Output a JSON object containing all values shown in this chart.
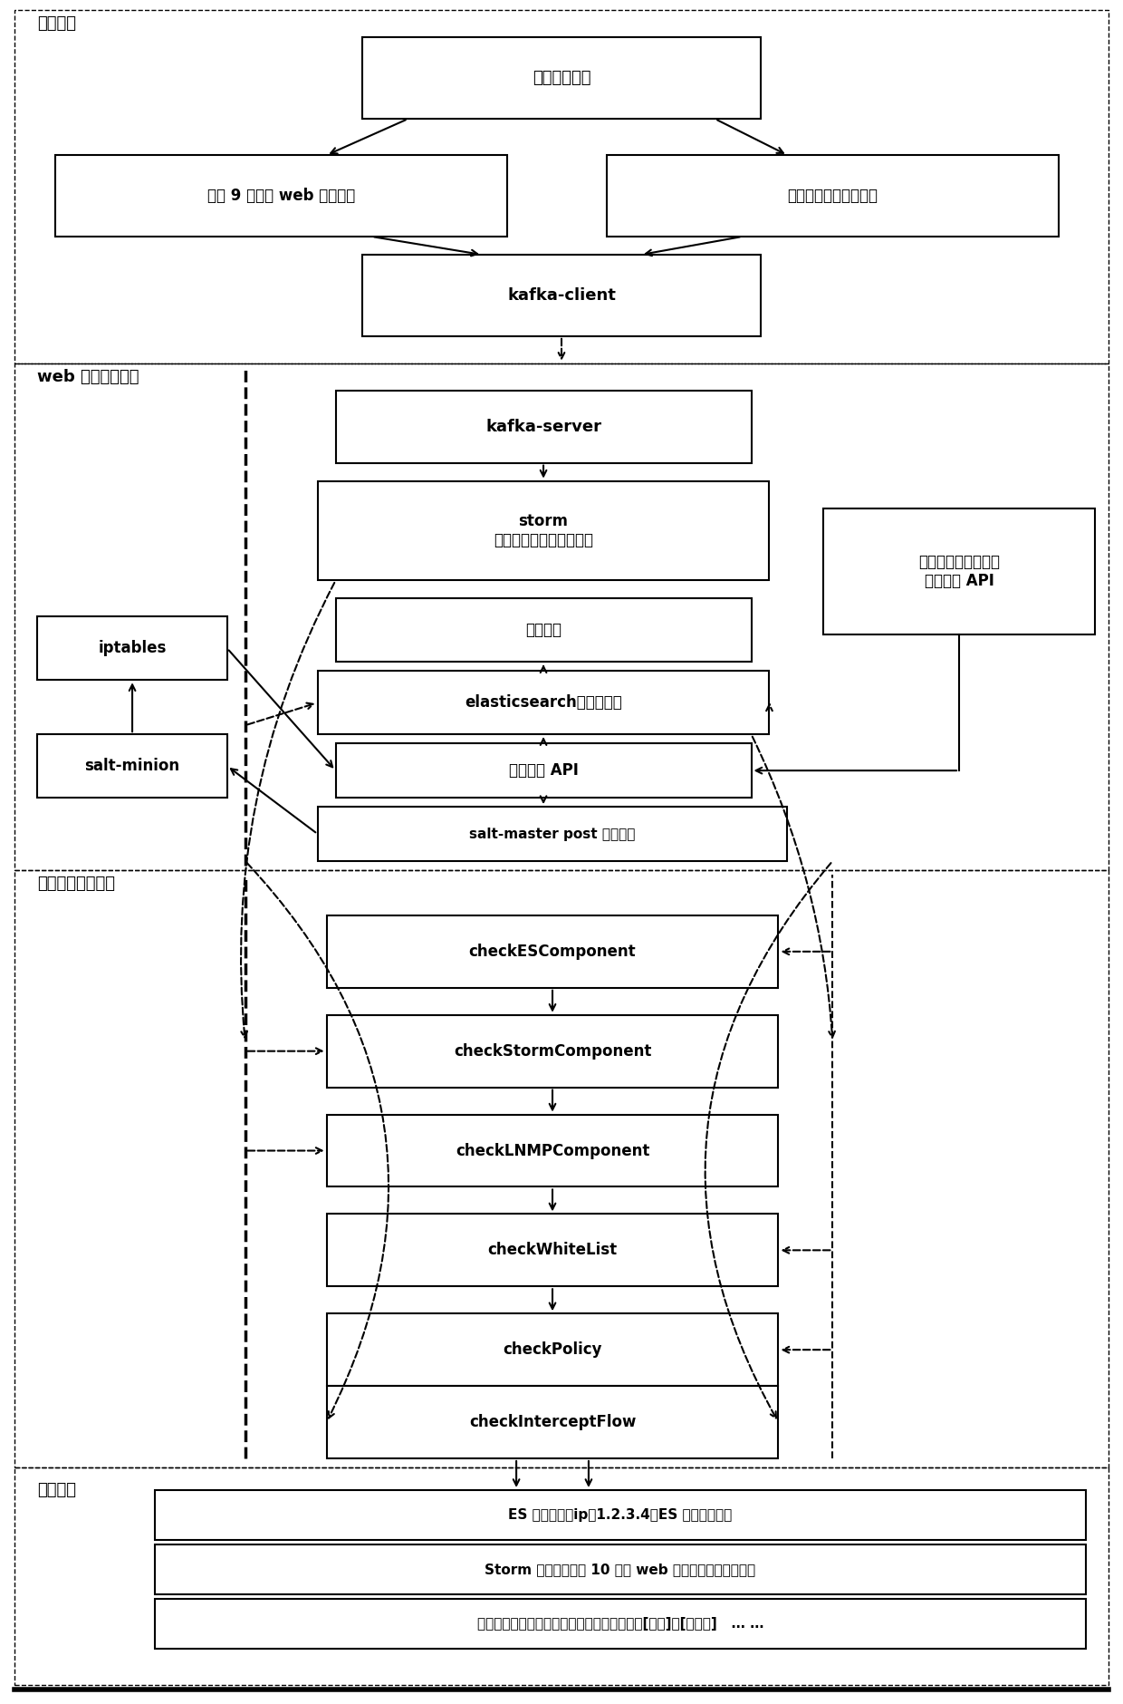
{
  "fig_width": 12.4,
  "fig_height": 18.8,
  "bg_color": "#ffffff",
  "section1_label": "日志系统",
  "section2_label": "web 攻击防御系统",
  "section3_label": "组件健康状态监测",
  "section4_label": "微信告警",
  "box_morizhi": "默认原始日志",
  "box_moni_web": "模拟 9 种常见 web 攻击日志",
  "box_moni_user": "模拟用户正常访问日志",
  "box_kafka_client": "kafka-client",
  "box_kafka_server": "kafka-server",
  "box_storm": "storm\n（日志实时分析系统和算",
  "box_qianduan": "前端展示",
  "box_elastic": "elasticsearch（存储数据",
  "box_weibo": "威胁上报 API",
  "box_saltmaster": "salt-master post 威胁数据",
  "box_iptables": "iptables",
  "box_saltminion": "salt-minion",
  "box_yonghu": "用户行为画像记录，\n信用污点 API",
  "box_checkES": "checkESComponent",
  "box_checkStorm": "checkStormComponent",
  "box_checkLNMP": "checkLNMPComponent",
  "box_checkWhite": "checkWhiteList",
  "box_checkPolicy": "checkPolicy",
  "box_checkIntercept": "checkInterceptFlow",
  "alert1": "ES 组件异常：ip：1.2.3.4，ES 组件无法连接",
  "alert2": "Storm 组件异常：近 10 分钟 web 攻击防御系统整体没有",
  "alert3": "攻击原因检测：有以下攻击原因没有被识别：[爬虫]、[刷单类]   … …"
}
